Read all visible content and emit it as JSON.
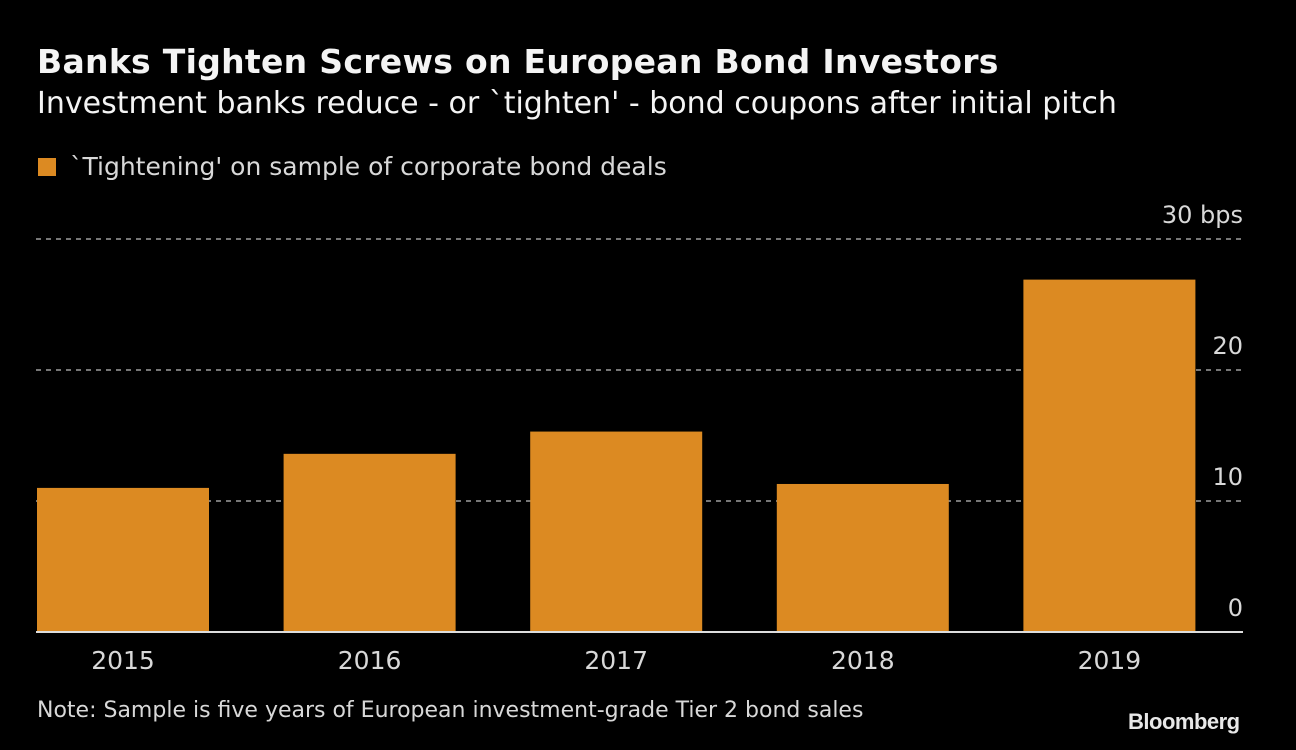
{
  "chart_data": {
    "type": "bar",
    "title": "Banks Tighten Screws on European Bond Investors",
    "subtitle": "Investment banks reduce - or `tighten' - bond coupons after initial pitch",
    "xlabel": "",
    "ylabel": "bps",
    "categories": [
      "2015",
      "2016",
      "2017",
      "2018",
      "2019"
    ],
    "series": [
      {
        "name": "`Tightening' on sample of corporate bond deals",
        "color": "#dc8a22",
        "values": [
          11.0,
          13.6,
          15.3,
          11.3,
          26.9
        ]
      }
    ],
    "ylim": [
      0,
      30
    ],
    "yticks": [
      0,
      10,
      20,
      30
    ],
    "ytick_labels": [
      "0",
      "10",
      "20",
      "30 bps"
    ],
    "grid": true,
    "legend_position": "top-left",
    "note": "Note: Sample is five years of European investment-grade Tier 2 bond sales",
    "source": "Bloomberg"
  },
  "colors": {
    "background": "#000000",
    "bar": "#dc8a22",
    "gridline": "#777777",
    "baseline": "#dddddd",
    "text": "#d8d8d8"
  }
}
